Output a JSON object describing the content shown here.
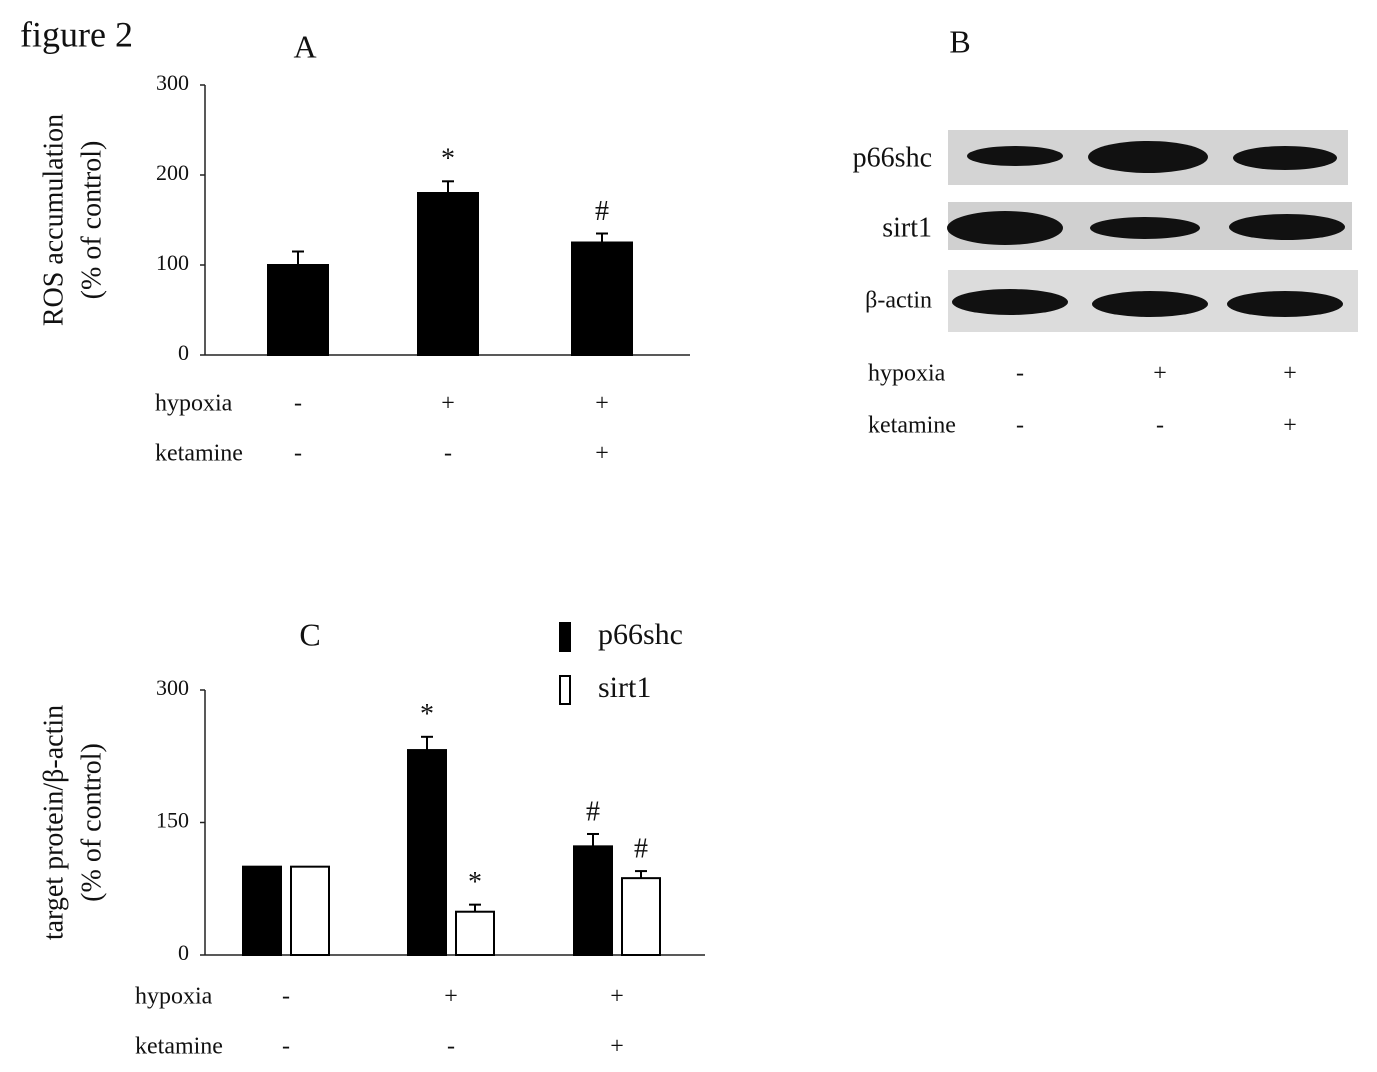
{
  "figure_label": "figure 2",
  "chart_data": [
    {
      "type": "bar",
      "title": "A",
      "ylabel": [
        "ROS accumulation",
        "(% of control)"
      ],
      "values": [
        100,
        180,
        125
      ],
      "errors": [
        15,
        13,
        10
      ],
      "annotations": [
        null,
        "*",
        "#"
      ],
      "color": "#000000",
      "ylim": [
        0,
        300
      ],
      "yticks": [
        0,
        100,
        200,
        300
      ],
      "conditions": [
        {
          "name": "hypoxia",
          "values": [
            "-",
            "+",
            "+"
          ]
        },
        {
          "name": "ketamine",
          "values": [
            "-",
            "-",
            "+"
          ]
        }
      ]
    },
    {
      "type": "bar",
      "title": "C",
      "ylabel": [
        "target protein/β-actin",
        "(% of control)"
      ],
      "series": [
        {
          "name": "p66shc",
          "color": "#000000",
          "values": [
            100,
            232,
            123
          ],
          "errors": [
            null,
            15,
            14
          ],
          "annotations": [
            null,
            "*",
            "#"
          ]
        },
        {
          "name": "sirt1",
          "color": "#ffffff",
          "values": [
            100,
            49,
            87
          ],
          "errors": [
            null,
            8,
            8
          ],
          "annotations": [
            null,
            "*",
            "#"
          ]
        }
      ],
      "ylim": [
        0,
        300
      ],
      "yticks": [
        0,
        150,
        300
      ],
      "conditions": [
        {
          "name": "hypoxia",
          "values": [
            "-",
            "+",
            "+"
          ]
        },
        {
          "name": "ketamine",
          "values": [
            "-",
            "-",
            "+"
          ]
        }
      ]
    }
  ],
  "blot": {
    "title": "B",
    "rows": [
      "p66shc",
      "sirt1",
      "β-actin"
    ],
    "conditions": [
      {
        "name": "hypoxia",
        "values": [
          "-",
          "+",
          "+"
        ]
      },
      {
        "name": "ketamine",
        "values": [
          "-",
          "-",
          "+"
        ]
      }
    ]
  }
}
